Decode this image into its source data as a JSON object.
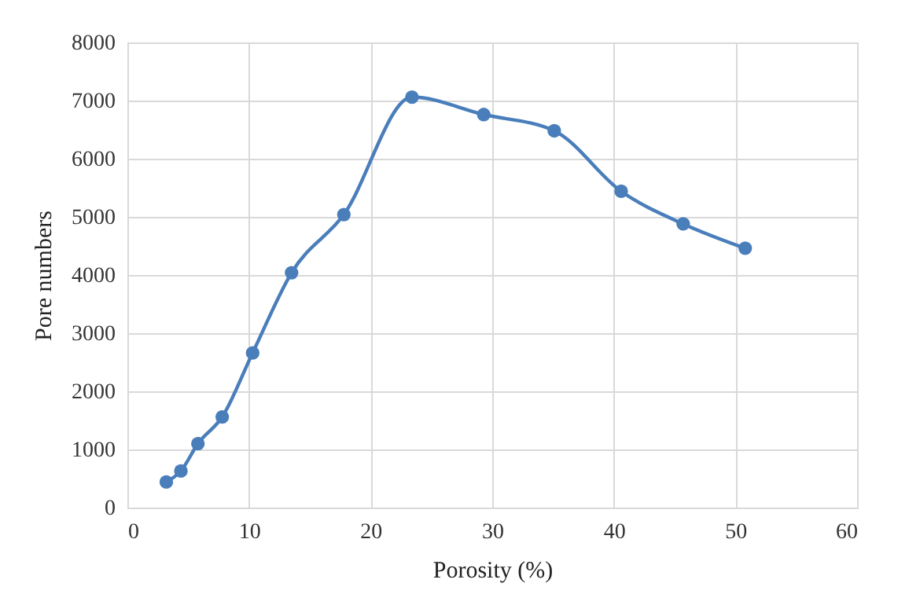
{
  "chart_data": {
    "type": "line",
    "xlabel": "Porosity (%)",
    "ylabel": "Pore numbers",
    "x": [
      3.2,
      4.4,
      5.8,
      7.8,
      10.3,
      13.5,
      17.8,
      23.4,
      29.3,
      35.1,
      40.6,
      45.7,
      50.8
    ],
    "series": [
      {
        "color": "#4a7ebb",
        "values": [
          440,
          630,
          1100,
          1560,
          2660,
          4040,
          5040,
          7060,
          6760,
          6480,
          5440,
          4880,
          4460
        ]
      }
    ],
    "xlim": [
      0,
      60
    ],
    "xticks": [
      0,
      10,
      20,
      30,
      40,
      50,
      60
    ],
    "ylim": [
      0,
      8000
    ],
    "yticks": [
      0,
      1000,
      2000,
      3000,
      4000,
      5000,
      6000,
      7000,
      8000
    ],
    "grid": true,
    "marker": "circle",
    "line_style": "solid"
  }
}
